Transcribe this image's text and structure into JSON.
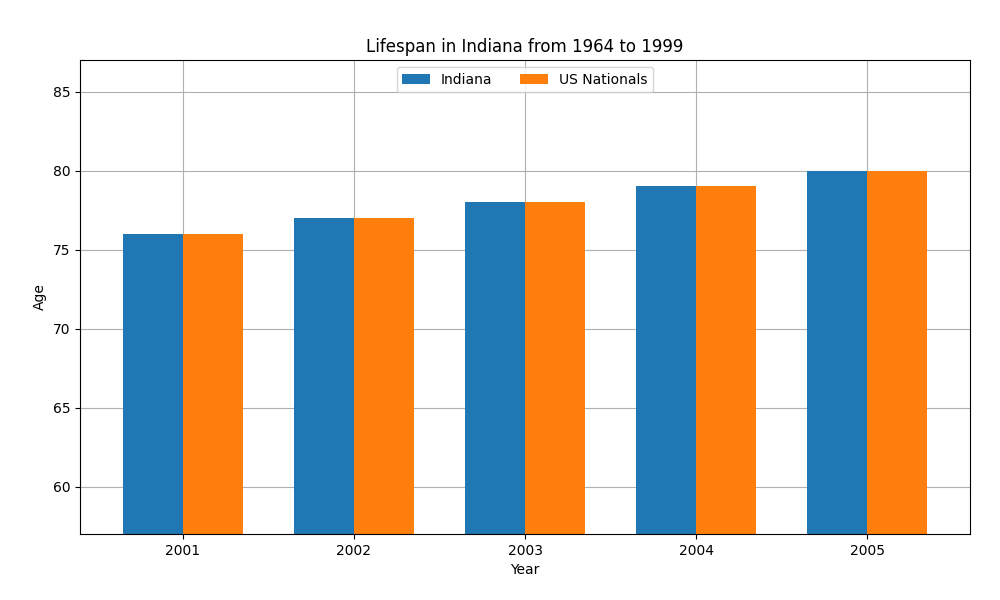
{
  "chart_data": {
    "type": "bar",
    "title": "Lifespan in Indiana from 1964 to 1999",
    "x_label": "Year",
    "y_label": "Age",
    "categories": [
      "2001",
      "2002",
      "2003",
      "2004",
      "2005"
    ],
    "series": [
      {
        "name": "Indiana",
        "values": [
          76,
          77,
          78,
          79,
          80
        ]
      },
      {
        "name": "US Nationals",
        "values": [
          76,
          77,
          78,
          79,
          80
        ]
      }
    ],
    "ylim": [
      57,
      87
    ],
    "yticks": [
      60,
      65,
      70,
      75,
      80,
      85
    ],
    "grid": true,
    "legend": "upper center"
  }
}
